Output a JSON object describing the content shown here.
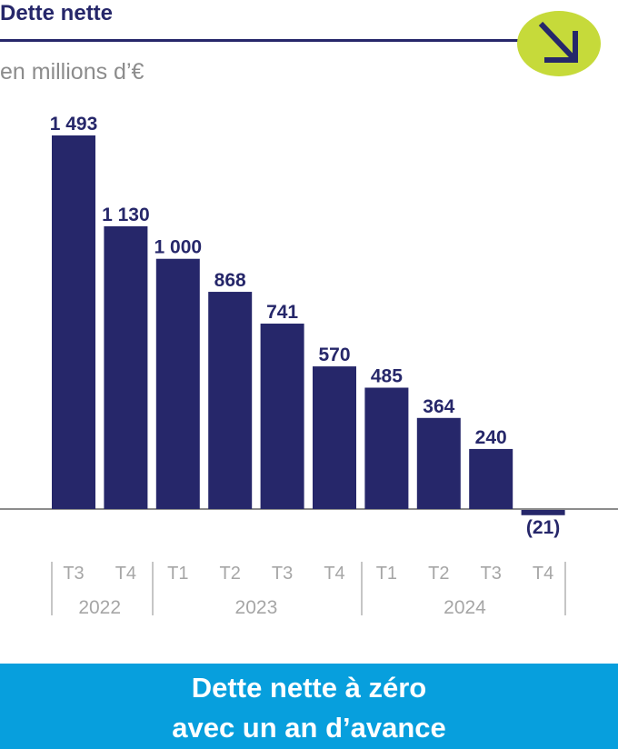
{
  "header": {
    "title": "Dette nette",
    "subtitle": "en millions d’€"
  },
  "badge": {
    "icon": "arrow-down-right-icon",
    "color": "#c6da3a",
    "arrow_color": "#26276a"
  },
  "colors": {
    "bar": "#26276a",
    "axis": "#8c8c8c",
    "banner": "#079fdd"
  },
  "chart_data": {
    "type": "bar",
    "categories": [
      "T3",
      "T4",
      "T1",
      "T2",
      "T3",
      "T4",
      "T1",
      "T2",
      "T3",
      "T4"
    ],
    "years": [
      {
        "label": "2022",
        "span": 2
      },
      {
        "label": "2023",
        "span": 4
      },
      {
        "label": "2024",
        "span": 4
      }
    ],
    "values": [
      1493,
      1130,
      1000,
      868,
      741,
      570,
      485,
      364,
      240,
      -21
    ],
    "value_labels": [
      "1 493",
      "1 130",
      "1 000",
      "868",
      "741",
      "570",
      "485",
      "364",
      "240",
      "(21)"
    ],
    "title": "Dette nette",
    "subtitle": "en millions d’€",
    "ylim": [
      -21,
      1493
    ],
    "grid": false,
    "legend": "none"
  },
  "banner": {
    "line1": "Dette nette à zéro",
    "line2": "avec un an d’avance"
  }
}
